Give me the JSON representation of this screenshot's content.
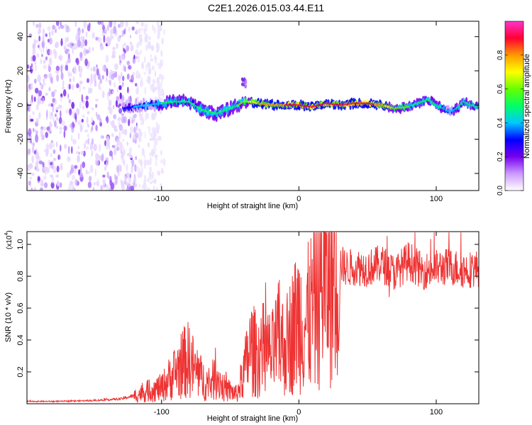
{
  "title": "C2E1.2026.015.03.44.E11",
  "chart_data": [
    {
      "type": "heatmap",
      "title": "C2E1.2026.015.03.44.E11",
      "xlabel": "Height of straight line (km)",
      "ylabel": "Frequency (Hz)",
      "xlim": [
        -198,
        131
      ],
      "ylim": [
        -50,
        49
      ],
      "xticks": [
        -100,
        0,
        100
      ],
      "yticks": [
        -40,
        -20,
        0,
        20,
        40
      ],
      "grid": false,
      "colorbar": {
        "label": "Normalized spectral amplitude",
        "range": [
          0,
          1
        ],
        "ticks": [
          0.0,
          0.2,
          0.4,
          0.6,
          0.8
        ],
        "colors": [
          "#ffffff",
          "#cc99ff",
          "#7700ee",
          "#0000ff",
          "#00c8ff",
          "#00ff66",
          "#66ff00",
          "#ffff00",
          "#ff9900",
          "#ff0033",
          "#ff33cc"
        ]
      },
      "noise_region_km": [
        -198,
        -118
      ],
      "ridge": {
        "x_km": [
          -128,
          -120,
          -110,
          -100,
          -90,
          -80,
          -70,
          -60,
          -50,
          -44,
          -40,
          -35,
          -30,
          -20,
          -10,
          0,
          10,
          20,
          30,
          40,
          50,
          60,
          70,
          80,
          90,
          95,
          100,
          105,
          110,
          115,
          120,
          125,
          131
        ],
        "frequency_hz": [
          -2,
          -1,
          0,
          1,
          2,
          2,
          -3,
          -5,
          -2,
          0,
          2,
          2,
          1,
          0,
          0,
          0,
          -1,
          1,
          0,
          1,
          1,
          0,
          -2,
          -1,
          2,
          3,
          0,
          -2,
          -4,
          -2,
          2,
          0,
          -1
        ],
        "amplitude": [
          0.3,
          0.35,
          0.4,
          0.45,
          0.45,
          0.45,
          0.5,
          0.5,
          0.5,
          0.55,
          0.6,
          0.7,
          0.75,
          0.8,
          0.85,
          0.9,
          0.88,
          0.85,
          0.85,
          0.88,
          0.9,
          0.8,
          0.6,
          0.55,
          0.5,
          0.55,
          0.5,
          0.45,
          0.4,
          0.45,
          0.5,
          0.5,
          0.45
        ]
      },
      "blob_near_minus40km_hz": [
        10,
        16
      ]
    },
    {
      "type": "line",
      "xlabel": "Height of straight line (km)",
      "ylabel": "SNR (10 * v/v)",
      "y_multiplier": "(x10",
      "y_multiplier_exp": "4",
      "xlim": [
        -198,
        131
      ],
      "ylim": [
        0.0,
        1.08
      ],
      "xticks": [
        -100,
        0,
        100
      ],
      "yticks": [
        0.2,
        0.4,
        0.6,
        0.8,
        1.0
      ],
      "grid": false,
      "series": [
        {
          "name": "SNR",
          "color": "#ee3333",
          "x": [
            -198,
            -175,
            -150,
            -130,
            -120,
            -110,
            -100,
            -90,
            -85,
            -80,
            -75,
            -70,
            -65,
            -60,
            -55,
            -50,
            -45,
            -40,
            -35,
            -30,
            -25,
            -20,
            -15,
            -10,
            -5,
            0,
            5,
            10,
            15,
            20,
            25,
            30,
            35,
            40,
            50,
            60,
            70,
            80,
            90,
            100,
            110,
            120,
            131
          ],
          "y": [
            0.015,
            0.015,
            0.02,
            0.03,
            0.05,
            0.08,
            0.1,
            0.2,
            0.25,
            0.28,
            0.2,
            0.15,
            0.12,
            0.18,
            0.1,
            0.08,
            0.06,
            0.2,
            0.35,
            0.3,
            0.35,
            0.3,
            0.4,
            0.35,
            0.45,
            0.55,
            0.5,
            0.6,
            0.75,
            0.8,
            0.85,
            0.88,
            0.85,
            0.86,
            0.85,
            0.88,
            0.82,
            0.9,
            0.83,
            0.85,
            0.86,
            0.84,
            0.85
          ]
        }
      ]
    }
  ]
}
